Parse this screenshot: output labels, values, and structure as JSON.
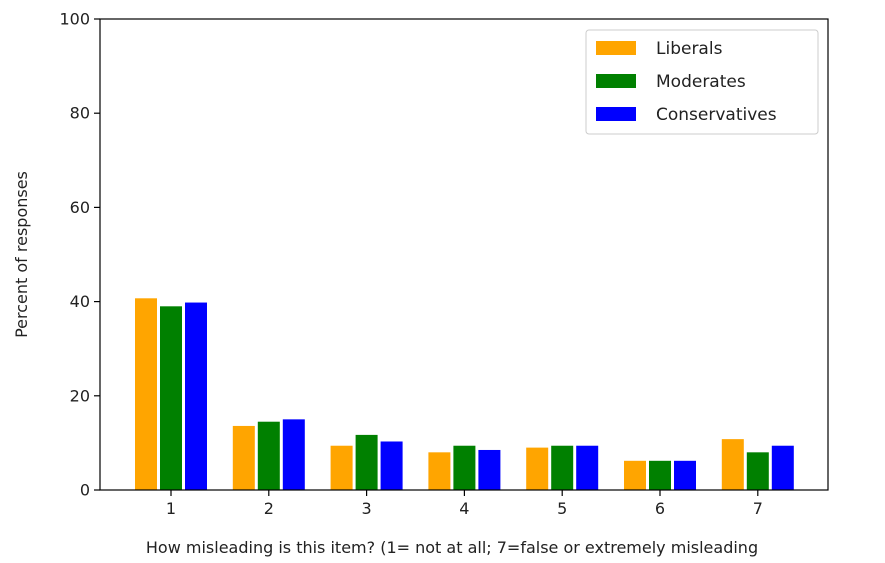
{
  "chart_data": {
    "type": "bar",
    "categories": [
      "1",
      "2",
      "3",
      "4",
      "5",
      "6",
      "7"
    ],
    "series": [
      {
        "name": "Liberals",
        "color": "#FFA500",
        "values": [
          40.7,
          13.6,
          9.4,
          8.0,
          9.0,
          6.2,
          10.8
        ]
      },
      {
        "name": "Moderates",
        "color": "#008000",
        "values": [
          39.0,
          14.5,
          11.7,
          9.4,
          9.4,
          6.2,
          8.0
        ]
      },
      {
        "name": "Conservatives",
        "color": "#0000FF",
        "values": [
          39.8,
          15.0,
          10.3,
          8.5,
          9.4,
          6.2,
          9.4
        ]
      }
    ],
    "xlabel": "How misleading is this item? (1= not at all; 7=false or extremely misleading",
    "ylabel": "Percent of responses",
    "ylim": [
      0,
      100
    ],
    "yticks": [
      0,
      20,
      40,
      60,
      80,
      100
    ],
    "grid": false,
    "legend_position": "top-right"
  }
}
